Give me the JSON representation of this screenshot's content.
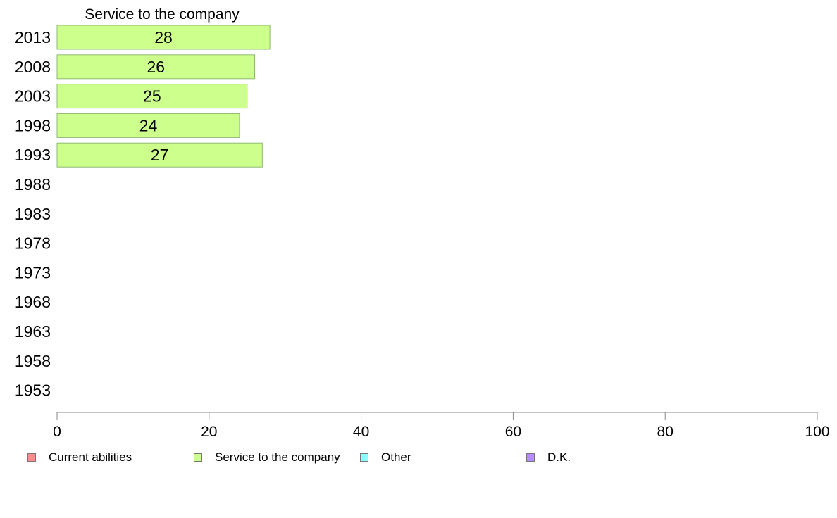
{
  "chart_data": {
    "type": "bar",
    "orientation": "horizontal",
    "title": "Service to the company",
    "categories": [
      "2013",
      "2008",
      "2003",
      "1998",
      "1993",
      "1988",
      "1983",
      "1978",
      "1973",
      "1968",
      "1963",
      "1958",
      "1953"
    ],
    "series": [
      {
        "name": "Service to the company",
        "color": "#ccff8c",
        "values": [
          28,
          26,
          25,
          24,
          27,
          null,
          null,
          null,
          null,
          null,
          null,
          null,
          null
        ],
        "data_labels": [
          "28",
          "26",
          "25",
          "24",
          "27",
          "",
          "",
          "",
          "",
          "",
          "",
          "",
          ""
        ]
      }
    ],
    "xlim": [
      0,
      100
    ],
    "xticks": [
      "0",
      "20",
      "40",
      "60",
      "80",
      "100"
    ],
    "grid": false,
    "legend_position": "bottom",
    "legend": [
      {
        "label": "Current abilities",
        "color": "#ff8c8c"
      },
      {
        "label": "Service to the company",
        "color": "#ccff8c"
      },
      {
        "label": "Other",
        "color": "#8cffff"
      },
      {
        "label": "D.K.",
        "color": "#b68cff"
      }
    ]
  }
}
